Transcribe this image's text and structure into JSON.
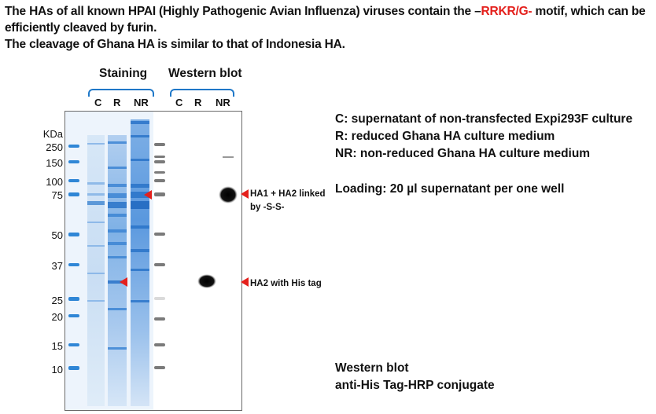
{
  "header": {
    "line1_pre": "The HAs of all known HPAI (Highly Pathogenic Avian Influenza) viruses contain the –",
    "line1_red": "RRKR/G-",
    "line1_post": " motif, which can be efficiently cleaved by furin.",
    "line2": "The cleavage of Ghana HA is similar to that of Indonesia HA."
  },
  "panels": {
    "staining": "Staining",
    "western": "Western blot"
  },
  "lanes": {
    "staining": [
      "C",
      "R",
      "NR"
    ],
    "western": [
      "C",
      "R",
      "NR"
    ]
  },
  "marker": {
    "unit": "KDa",
    "values": [
      "250",
      "150",
      "100",
      "75",
      "50",
      "37",
      "25",
      "20",
      "15",
      "10"
    ]
  },
  "annotations": {
    "ha_linked": "HA1 + HA2 linked",
    "ha_linked_2": "by  -S-S-",
    "ha2": "HA2 with His tag"
  },
  "legend": {
    "c": "C: supernatant of non-transfected Expi293F culture",
    "r": "R: reduced Ghana HA culture medium",
    "nr": "NR: non-reduced Ghana HA culture medium",
    "loading": "Loading: 20 µl supernatant per one well",
    "wb1": "Western blot",
    "wb2": "anti-His Tag-HRP conjugate"
  },
  "colors": {
    "accent_red": "#e4201c",
    "stain_blue": "#1f78c8",
    "band_dark": "#000000"
  }
}
